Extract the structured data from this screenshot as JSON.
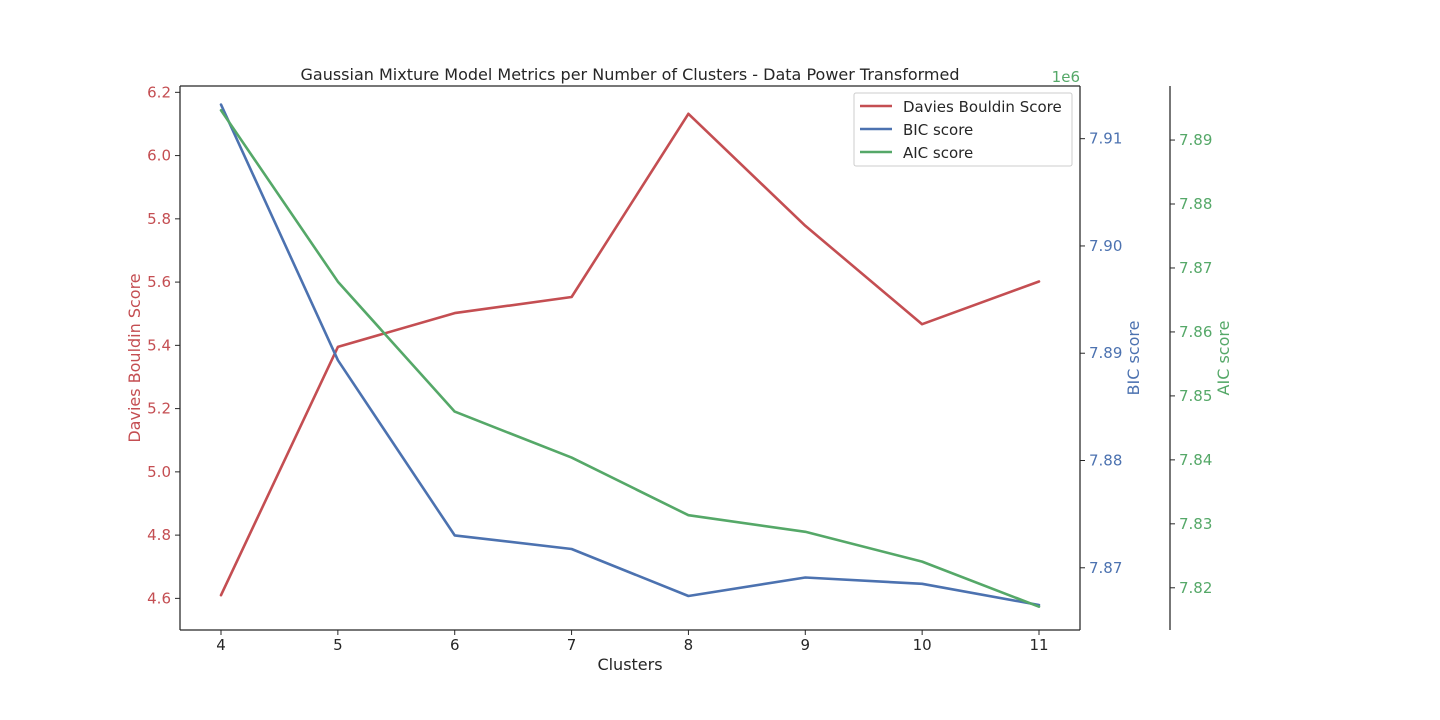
{
  "chart_data": {
    "type": "line",
    "title": "Gaussian Mixture Model Metrics per Number of Clusters - Data Power Transformed",
    "xlabel": "Clusters",
    "x": [
      4,
      5,
      6,
      7,
      8,
      9,
      10,
      11
    ],
    "xticks": [
      "4",
      "5",
      "6",
      "7",
      "8",
      "9",
      "10",
      "11"
    ],
    "grid": false,
    "legend_position": "upper right",
    "series": [
      {
        "name": "Davies Bouldin Score",
        "color": "#c44e52",
        "axis": "left",
        "values": [
          4.61,
          5.395,
          5.502,
          5.553,
          6.132,
          5.778,
          5.467,
          5.602
        ]
      },
      {
        "name": "BIC score",
        "color": "#4c72b0",
        "axis": "right1",
        "values": [
          7.91318,
          7.88935,
          7.87302,
          7.87175,
          7.86737,
          7.86909,
          7.86851,
          7.86653
        ]
      },
      {
        "name": "AIC score",
        "color": "#55a868",
        "axis": "right2",
        "values": [
          7.89465,
          7.86785,
          7.84755,
          7.84035,
          7.83135,
          7.82875,
          7.8241,
          7.81705
        ]
      }
    ],
    "axes": {
      "left": {
        "label": "Davies Bouldin Score",
        "color": "#c44e52",
        "ylim": [
          4.5,
          6.22
        ],
        "ticks": [
          4.6,
          4.8,
          5.0,
          5.2,
          5.4,
          5.6,
          5.8,
          6.0,
          6.2
        ],
        "tick_labels": [
          "4.6",
          "4.8",
          "5.0",
          "5.2",
          "5.4",
          "5.6",
          "5.8",
          "6.0",
          "6.2"
        ]
      },
      "right1": {
        "label": "BIC score",
        "color": "#4c72b0",
        "ylim": [
          7.8642,
          7.91491
        ],
        "ticks": [
          7.87,
          7.88,
          7.89,
          7.9,
          7.91
        ],
        "tick_labels": [
          "7.87",
          "7.88",
          "7.89",
          "7.90",
          "7.91"
        ],
        "offset_text": "1e6"
      },
      "right2": {
        "label": "AIC score",
        "color": "#55a868",
        "ylim": [
          7.8134,
          7.89845
        ],
        "ticks": [
          7.82,
          7.83,
          7.84,
          7.85,
          7.86,
          7.87,
          7.88,
          7.89
        ],
        "tick_labels": [
          "7.82",
          "7.83",
          "7.84",
          "7.85",
          "7.86",
          "7.87",
          "7.88",
          "7.89"
        ],
        "offset_text_color": "#55a868"
      }
    }
  }
}
